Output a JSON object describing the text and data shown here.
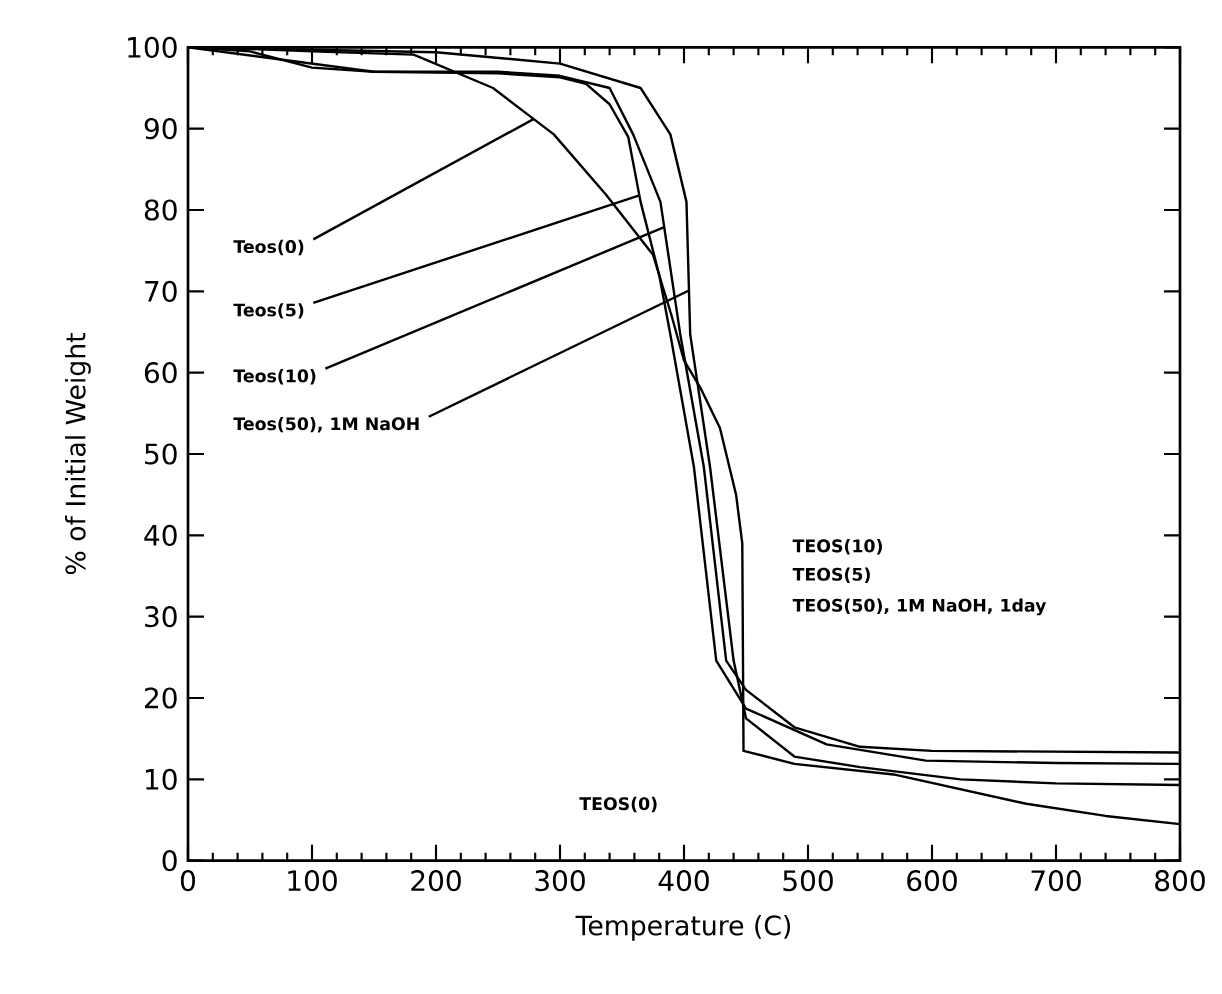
{
  "chart_data": {
    "type": "line",
    "xlabel": "Temperature (C)",
    "ylabel": "% of Initial Weight",
    "xlim": [
      0,
      800
    ],
    "ylim": [
      0,
      100
    ],
    "xticks": [
      0,
      100,
      200,
      300,
      400,
      500,
      600,
      700,
      800
    ],
    "yticks": [
      0,
      10,
      20,
      30,
      40,
      50,
      60,
      70,
      80,
      90,
      100
    ],
    "series": [
      {
        "color": "#000000",
        "x": [
          0,
          50,
          100,
          182,
          246,
          295,
          337,
          375,
          390,
          400,
          413,
          429,
          442,
          447,
          448,
          489,
          569,
          676,
          740,
          800
        ],
        "values": [
          100,
          99.8,
          99.5,
          99.1,
          95,
          89.3,
          81.9,
          74.5,
          67,
          61.5,
          58.2,
          53.2,
          45,
          39,
          13.5,
          11.9,
          10.6,
          7,
          5.5,
          4.5
        ]
      },
      {
        "color": "#000000",
        "x": [
          0,
          50,
          100,
          150,
          250,
          300,
          321,
          340,
          355,
          365,
          380,
          389,
          408,
          426,
          450,
          515,
          595,
          700,
          800
        ],
        "values": [
          100,
          99.5,
          97.5,
          97,
          96.8,
          96.3,
          95.5,
          93,
          89,
          81,
          72,
          64.7,
          48.4,
          24.6,
          18.7,
          14.3,
          12.3,
          12,
          11.9
        ]
      },
      {
        "color": "#000000",
        "x": [
          0,
          100,
          150,
          250,
          300,
          340,
          359,
          381,
          397,
          416,
          434,
          450,
          489,
          542,
          600,
          800
        ],
        "values": [
          100,
          98,
          97,
          97,
          96.5,
          95,
          89.3,
          81,
          64.7,
          48.4,
          24.6,
          21,
          16.4,
          14,
          13.5,
          13.3
        ]
      },
      {
        "color": "#000000",
        "x": [
          0,
          100,
          200,
          300,
          365,
          389,
          402,
          405,
          421,
          440,
          450,
          489,
          542,
          623,
          700,
          800
        ],
        "values": [
          100,
          99.7,
          99.4,
          98,
          95,
          89.3,
          81,
          64.7,
          48.4,
          24.6,
          17.5,
          12.8,
          11.5,
          10,
          9.5,
          9.3
        ]
      }
    ],
    "annotations": [
      {
        "text": "Teos(0)",
        "x": 279,
        "y": 91.2
      },
      {
        "text": "Teos(5)",
        "x": 364,
        "y": 81.8
      },
      {
        "text": "Teos(10)",
        "x": 384,
        "y": 77.9
      },
      {
        "text": "Teos(50), 1M NaOH",
        "x": 404,
        "y": 70.1
      },
      "TEOS(10)",
      "TEOS(5)",
      "TEOS(50), 1M NaOH, 1day",
      "TEOS(0)"
    ]
  }
}
